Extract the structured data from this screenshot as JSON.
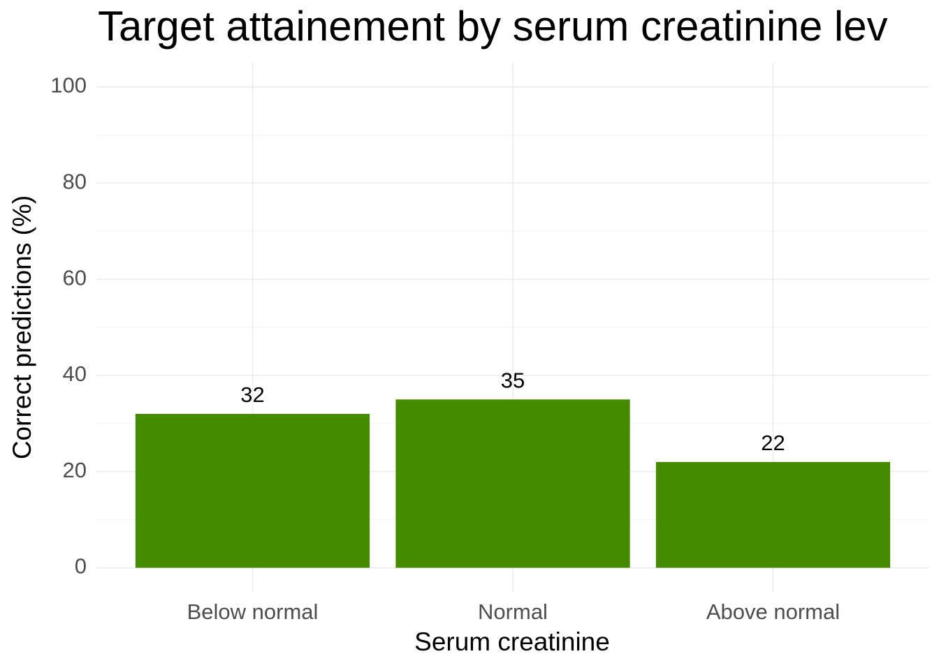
{
  "chart_data": {
    "type": "bar",
    "title": "Target attainement by serum creatinine lev",
    "x_label": "Serum creatinine",
    "y_label": "Correct predictions (%)",
    "categories": [
      "Below normal",
      "Normal",
      "Above normal"
    ],
    "values": [
      32,
      35,
      22
    ],
    "color": "#458b00",
    "ylim": [
      -5,
      105
    ],
    "yticks": [
      0,
      20,
      40,
      60,
      80,
      100
    ],
    "grid": true
  }
}
